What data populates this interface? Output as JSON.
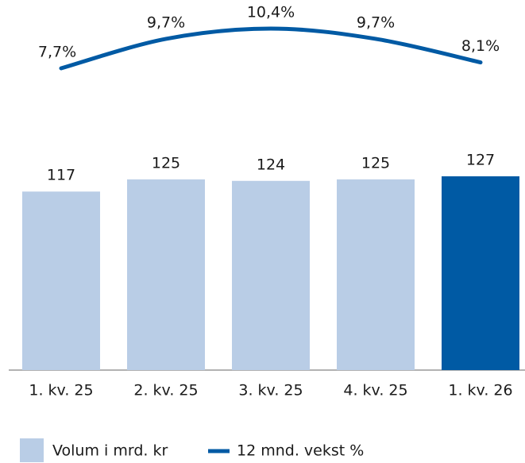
{
  "chart_data": {
    "type": "bar_line",
    "categories": [
      "1. kv. 25",
      "2. kv. 25",
      "3. kv. 25",
      "4. kv. 25",
      "1. kv. 26"
    ],
    "series": [
      {
        "name": "Volum i mrd. kr",
        "type": "bar",
        "color": "#b9cde6",
        "colors": [
          "#b9cde6",
          "#b9cde6",
          "#b9cde6",
          "#b9cde6",
          "#005aa4"
        ],
        "values": [
          117,
          125,
          124,
          125,
          127
        ]
      },
      {
        "name": "12 mnd. vekst %",
        "type": "line",
        "axis": "y2",
        "color": "#005aa4",
        "values": [
          7.7,
          9.7,
          10.4,
          9.7,
          8.1
        ],
        "value_labels": [
          "7,7%",
          "9,7%",
          "10,4%",
          "9,7%",
          "8,1%"
        ]
      }
    ]
  }
}
